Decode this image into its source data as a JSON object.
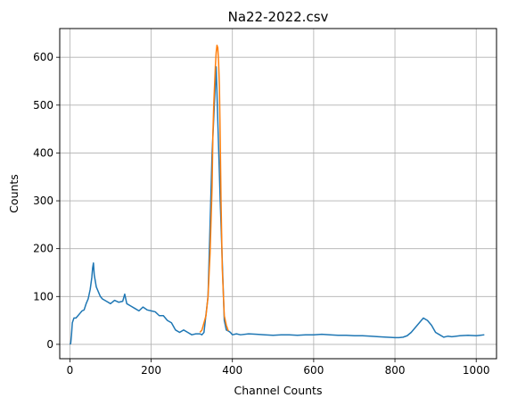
{
  "chart_data": {
    "type": "line",
    "title": "Na22-2022.csv",
    "xlabel": "Channel Counts",
    "ylabel": "Counts",
    "xlim": [
      -25,
      1050
    ],
    "ylim": [
      -30,
      660
    ],
    "x_ticks": [
      0,
      200,
      400,
      600,
      800,
      1000
    ],
    "y_ticks": [
      0,
      100,
      200,
      300,
      400,
      500,
      600
    ],
    "grid": true,
    "legend": "none",
    "series": [
      {
        "color": "#1f77b4",
        "x": [
          0,
          2,
          4,
          6,
          10,
          15,
          20,
          25,
          30,
          35,
          40,
          45,
          50,
          54,
          56,
          58,
          60,
          62,
          65,
          70,
          75,
          80,
          90,
          100,
          110,
          120,
          130,
          135,
          140,
          150,
          160,
          170,
          180,
          190,
          200,
          210,
          220,
          230,
          240,
          250,
          260,
          270,
          280,
          290,
          300,
          310,
          320,
          325,
          330,
          340,
          350,
          360,
          370,
          380,
          385,
          390,
          395,
          400,
          410,
          420,
          440,
          460,
          480,
          500,
          520,
          540,
          560,
          580,
          600,
          620,
          640,
          660,
          680,
          700,
          720,
          740,
          760,
          780,
          800,
          810,
          820,
          830,
          840,
          850,
          860,
          870,
          880,
          890,
          900,
          910,
          920,
          930,
          940,
          960,
          980,
          1000,
          1010,
          1020
        ],
        "y": [
          0,
          2,
          20,
          45,
          55,
          55,
          60,
          65,
          70,
          72,
          85,
          95,
          115,
          140,
          160,
          170,
          145,
          135,
          120,
          110,
          100,
          95,
          90,
          85,
          92,
          88,
          90,
          105,
          85,
          80,
          75,
          70,
          78,
          72,
          70,
          68,
          60,
          60,
          50,
          45,
          30,
          25,
          30,
          25,
          20,
          22,
          22,
          20,
          25,
          100,
          400,
          580,
          300,
          50,
          30,
          28,
          25,
          20,
          22,
          20,
          22,
          21,
          20,
          19,
          20,
          20,
          19,
          20,
          20,
          21,
          20,
          19,
          19,
          18,
          18,
          17,
          16,
          15,
          14,
          14,
          15,
          18,
          25,
          35,
          45,
          55,
          50,
          40,
          25,
          20,
          15,
          17,
          16,
          18,
          19,
          18,
          19,
          20
        ]
      },
      {
        "color": "#ff7f0e",
        "x": [
          320,
          325,
          330,
          335,
          340,
          345,
          350,
          352,
          354,
          356,
          358,
          360,
          362,
          364,
          366,
          368,
          370,
          372,
          375,
          380,
          385,
          390
        ],
        "y": [
          25,
          30,
          45,
          60,
          100,
          190,
          330,
          440,
          500,
          540,
          580,
          610,
          625,
          620,
          590,
          540,
          430,
          300,
          160,
          60,
          40,
          28
        ]
      }
    ]
  }
}
